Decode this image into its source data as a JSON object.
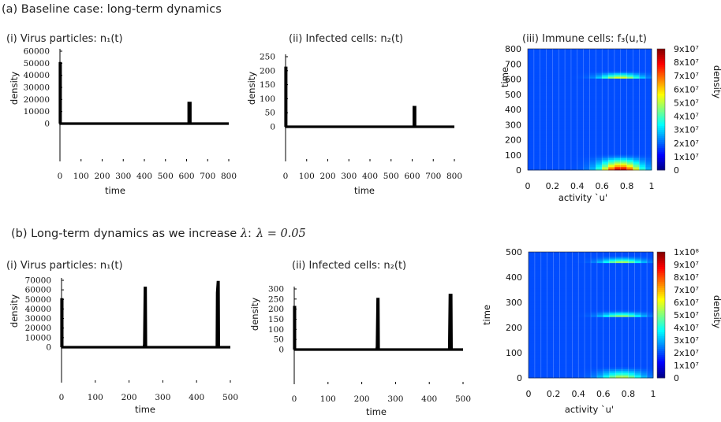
{
  "section_a": "(a) Baseline case: long-term dynamics",
  "section_b_prefix": "(b) Long-term dynamics as we increase ",
  "section_b_lambda": "λ",
  "section_b_colon": ":",
  "section_b_eq": "λ = 0.05",
  "colors": {
    "ink": "#000000",
    "text": "#222222"
  },
  "chart_data": [
    {
      "panel": "a-i",
      "type": "line",
      "title": "(i) Virus particles: n₁(t)",
      "xlabel": "time",
      "ylabel": "density",
      "xlim": [
        0,
        800
      ],
      "ylim": [
        0,
        60000
      ],
      "xticks": [
        "0",
        "100",
        "200",
        "300",
        "400",
        "500",
        "600",
        "700",
        "800"
      ],
      "yticks": [
        "0",
        "10000",
        "20000",
        "30000",
        "40000",
        "50000",
        "60000"
      ],
      "series": [
        {
          "x": [
            0,
            0,
            3,
            3,
            610,
            610,
            618,
            618,
            800
          ],
          "values": [
            0,
            50000,
            50000,
            0,
            0,
            17000,
            17000,
            0,
            0
          ]
        }
      ]
    },
    {
      "panel": "a-ii",
      "type": "line",
      "title": "(ii) Infected cells: n₂(t)",
      "xlabel": "time",
      "ylabel": "density",
      "xlim": [
        0,
        800
      ],
      "ylim": [
        0,
        250
      ],
      "xticks": [
        "0",
        "100",
        "200",
        "300",
        "400",
        "500",
        "600",
        "700",
        "800"
      ],
      "yticks": [
        "0",
        "50",
        "100",
        "150",
        "200",
        "250"
      ],
      "series": [
        {
          "x": [
            0,
            0,
            3,
            3,
            608,
            608,
            614,
            614,
            800
          ],
          "values": [
            0,
            210,
            210,
            0,
            0,
            70,
            70,
            0,
            0
          ]
        }
      ]
    },
    {
      "panel": "a-iii",
      "type": "heatmap",
      "title": "(iii) Immune cells: f₃(u,t)",
      "xlabel": "activity `u'",
      "ylabel": "time",
      "colorbar_label": "density",
      "xlim": [
        0,
        1
      ],
      "ylim": [
        0,
        800
      ],
      "xticks": [
        "0",
        "0.2",
        "0.4",
        "0.6",
        "0.8",
        "1"
      ],
      "yticks": [
        "0",
        "100",
        "200",
        "300",
        "400",
        "500",
        "600",
        "700",
        "800"
      ],
      "cticks": [
        "0",
        "1x10⁷",
        "2x10⁷",
        "3x10⁷",
        "4x10⁷",
        "5x10⁷",
        "6x10⁷",
        "7x10⁷",
        "8x10⁷",
        "9x10⁷"
      ],
      "cmax": 90000000,
      "peaks": [
        {
          "t": 0,
          "u": 0.75,
          "value": 90000000,
          "extent_t": 105
        },
        {
          "t": 610,
          "u": 0.75,
          "value": 55000000,
          "extent_t": 45
        }
      ]
    },
    {
      "panel": "b-i",
      "type": "line",
      "title": "(i) Virus particles: n₁(t)",
      "xlabel": "time",
      "ylabel": "density",
      "xlim": [
        0,
        500
      ],
      "ylim": [
        0,
        70000
      ],
      "xticks": [
        "0",
        "100",
        "200",
        "300",
        "400",
        "500"
      ],
      "yticks": [
        "0",
        "10000",
        "20000",
        "30000",
        "40000",
        "50000",
        "60000",
        "70000"
      ],
      "series": [
        {
          "x": [
            0,
            0,
            2,
            2,
            244,
            245,
            247,
            249,
            250,
            460,
            461,
            463,
            465,
            466,
            500
          ],
          "values": [
            0,
            50000,
            50000,
            0,
            0,
            3000,
            62000,
            62000,
            0,
            0,
            57000,
            68000,
            68000,
            0,
            0
          ]
        }
      ]
    },
    {
      "panel": "b-ii",
      "type": "line",
      "title": "(ii) Infected cells: n₂(t)",
      "xlabel": "time",
      "ylabel": "density",
      "xlim": [
        0,
        500
      ],
      "ylim": [
        0,
        300
      ],
      "xticks": [
        "0",
        "100",
        "200",
        "300",
        "400",
        "500"
      ],
      "yticks": [
        "0",
        "50",
        "100",
        "150",
        "200",
        "250",
        "300"
      ],
      "series": [
        {
          "x": [
            0,
            0,
            2,
            2,
            244,
            245,
            247,
            249,
            250,
            459,
            461,
            465,
            466,
            500
          ],
          "values": [
            0,
            210,
            210,
            0,
            0,
            15,
            250,
            250,
            0,
            0,
            270,
            270,
            0,
            0
          ]
        }
      ]
    },
    {
      "panel": "b-iii",
      "type": "heatmap",
      "title": "",
      "xlabel": "activity `u'",
      "ylabel": "time",
      "colorbar_label": "density",
      "xlim": [
        0,
        1
      ],
      "ylim": [
        0,
        500
      ],
      "xticks": [
        "0",
        "0.2",
        "0.4",
        "0.6",
        "0.8",
        "1"
      ],
      "yticks": [
        "0",
        "100",
        "200",
        "300",
        "400",
        "500"
      ],
      "cticks": [
        "0",
        "1x10⁷",
        "2x10⁷",
        "3x10⁷",
        "4x10⁷",
        "5x10⁷",
        "6x10⁷",
        "7x10⁷",
        "8x10⁷",
        "9x10⁷",
        "1x10⁸"
      ],
      "cmax": 100000000,
      "peaks": [
        {
          "t": 0,
          "u": 0.75,
          "value": 60000000,
          "extent_t": 45
        },
        {
          "t": 245,
          "u": 0.75,
          "value": 55000000,
          "extent_t": 25
        },
        {
          "t": 460,
          "u": 0.75,
          "value": 55000000,
          "extent_t": 25
        }
      ]
    }
  ]
}
